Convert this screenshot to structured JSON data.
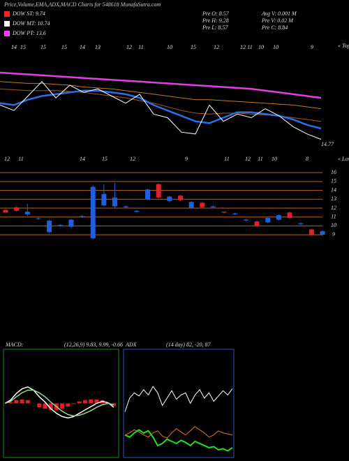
{
  "header": {
    "title": "Price,Volume,EMA,ADX,MACD Charts for 548618 MunafaSutra.com",
    "legend": [
      {
        "label": "DOW ST: 9.74",
        "color": "#ff2020"
      },
      {
        "label": "DOW MT: 10.74",
        "color": "#ffffff"
      },
      {
        "label": "DOW PT: 13.6",
        "color": "#ff40ff"
      }
    ],
    "stats": [
      "Pre  O: 8.57",
      "Avg  V: 0.001 M",
      "Pre  H: 9.28",
      "Pre  V: 0.02 M",
      "Pre  L: 8.57",
      "Pre  C: 8.84"
    ]
  },
  "chart_data": [
    {
      "type": "line",
      "annotation": "14.77",
      "tops_label": "« Tops",
      "top_labels": [
        "14",
        "15",
        "15",
        "15",
        "14",
        "13",
        "12",
        "11",
        "10",
        "15",
        "12",
        "12",
        "11",
        "10",
        "10",
        "9"
      ],
      "bottom_labels": [
        "12",
        "11",
        "14",
        "15",
        "12",
        "9",
        "11",
        "12",
        "11",
        "10",
        "8"
      ],
      "ylim": [
        14,
        20
      ],
      "series": [
        {
          "color": "#e040e0",
          "values": [
            18.3,
            18.25,
            18.2,
            18.15,
            18.1,
            18.05,
            18.0,
            17.95,
            17.9,
            17.85,
            17.8,
            17.75,
            17.7,
            17.65,
            17.6,
            17.55,
            17.5,
            17.45,
            17.4,
            17.3,
            17.2,
            17.1,
            17.0,
            16.9
          ]
        },
        {
          "color": "#c8761c",
          "values": [
            17.8,
            17.75,
            17.7,
            17.7,
            17.65,
            17.6,
            17.5,
            17.45,
            17.4,
            17.3,
            17.2,
            17.1,
            17.0,
            16.9,
            16.8,
            16.8,
            16.75,
            16.7,
            16.65,
            16.6,
            16.55,
            16.5,
            16.4,
            16.3
          ]
        },
        {
          "color": "#a0581a",
          "values": [
            17.4,
            17.35,
            17.3,
            17.3,
            17.3,
            17.25,
            17.2,
            17.1,
            17.0,
            16.9,
            16.75,
            16.6,
            16.4,
            16.2,
            16.05,
            16.0,
            16.05,
            16.05,
            16.0,
            15.95,
            15.9,
            15.8,
            15.7,
            15.6
          ]
        },
        {
          "color": "#2a6fe8",
          "values": [
            16.6,
            16.5,
            16.8,
            17.0,
            17.1,
            17.2,
            17.3,
            17.3,
            17.2,
            17.1,
            16.9,
            16.5,
            16.2,
            15.9,
            15.6,
            15.5,
            15.8,
            16.1,
            16.1,
            16.0,
            15.9,
            15.7,
            15.4,
            15.2
          ]
        },
        {
          "color": "#ffffff",
          "values": [
            16.5,
            16.2,
            17.0,
            17.8,
            16.9,
            17.6,
            17.2,
            17.4,
            17.0,
            16.6,
            17.1,
            16.0,
            15.8,
            15.0,
            14.9,
            16.5,
            15.6,
            16.0,
            15.8,
            16.3,
            15.9,
            15.3,
            14.9,
            14.6
          ]
        }
      ]
    },
    {
      "type": "candlestick",
      "lows_label": "« Lows",
      "ylim": [
        8.3,
        16.8
      ],
      "yticks": [
        9,
        10,
        11,
        12,
        13,
        14,
        15,
        16
      ],
      "up_color": "#2060e0",
      "down_color": "#e02028",
      "grid_color": "#b8661c",
      "open": [
        11.8,
        12.1,
        11.3,
        10.8,
        9.3,
        10.05,
        9.9,
        11.0,
        8.6,
        12.3,
        12.2,
        12.1,
        11.6,
        13.0,
        14.7,
        12.8,
        13.4,
        12.0,
        12.6,
        12.1,
        11.6,
        11.3,
        10.6,
        10.5,
        10.4,
        10.7,
        11.5,
        10.2,
        9.6,
        9.0
      ],
      "high": [
        11.9,
        12.2,
        12.5,
        10.95,
        10.7,
        10.2,
        10.8,
        11.2,
        14.6,
        14.7,
        14.85,
        12.3,
        11.8,
        14.2,
        14.8,
        13.4,
        13.5,
        12.8,
        12.7,
        12.3,
        11.6,
        11.5,
        10.8,
        10.6,
        11.0,
        11.3,
        11.6,
        10.4,
        9.7,
        9.5
      ],
      "low": [
        11.4,
        11.6,
        11.1,
        10.7,
        9.2,
        9.9,
        9.8,
        10.9,
        8.5,
        12.2,
        12.0,
        12.0,
        11.5,
        12.9,
        13.1,
        12.7,
        12.8,
        11.9,
        12.0,
        12.0,
        11.4,
        11.2,
        10.5,
        9.9,
        10.3,
        10.6,
        10.8,
        10.1,
        8.9,
        8.9
      ],
      "close": [
        11.5,
        11.7,
        11.6,
        10.85,
        10.6,
        10.1,
        10.7,
        11.1,
        14.4,
        13.6,
        13.2,
        12.2,
        11.7,
        14.1,
        13.2,
        13.3,
        12.9,
        12.7,
        12.1,
        12.2,
        11.5,
        11.4,
        10.7,
        10.0,
        10.9,
        11.2,
        10.9,
        10.3,
        9.0,
        9.4
      ]
    },
    {
      "type": "macd",
      "title": "MACD:",
      "subtitle": "(12,26,9) 9.83, 9.99, -0.66",
      "ylim": [
        -8,
        8
      ],
      "series": [
        {
          "color": "#ffffff",
          "values": [
            0,
            0.5,
            1.5,
            2.2,
            2.5,
            2.0,
            1.0,
            0.2,
            -0.8,
            -1.5,
            -2.0,
            -2.2,
            -2.0,
            -1.5,
            -1.0,
            -0.5,
            0,
            0.3,
            0.1,
            -0.6
          ]
        },
        {
          "color": "#9ad29a",
          "values": [
            0,
            0.3,
            1.0,
            1.6,
            2.0,
            2.0,
            1.6,
            1.0,
            0.2,
            -0.5,
            -1.2,
            -1.7,
            -1.9,
            -1.8,
            -1.5,
            -1.1,
            -0.6,
            -0.2,
            0,
            -0.2
          ]
        }
      ],
      "histogram": {
        "color": "#e02020",
        "values": [
          0,
          0.2,
          0.5,
          0.6,
          0.5,
          0,
          -0.6,
          -0.8,
          -1.0,
          -1.0,
          -0.8,
          -0.5,
          -0.1,
          0.3,
          0.5,
          0.6,
          0.6,
          0.5,
          0.1,
          -0.4
        ]
      }
    },
    {
      "type": "line",
      "title": "ADX",
      "subtitle": "(14 day) 82, -20, 87",
      "ylim": [
        0,
        100
      ],
      "series": [
        {
          "color": "#ffffff",
          "values": [
            42,
            55,
            60,
            57,
            63,
            58,
            66,
            60,
            48,
            55,
            62,
            54,
            58,
            60,
            50,
            58,
            63,
            55,
            60,
            52,
            57,
            62,
            58,
            64
          ]
        },
        {
          "color": "#e07a1a",
          "values": [
            20,
            22,
            25,
            23,
            20,
            18,
            22,
            24,
            19,
            17,
            22,
            26,
            23,
            20,
            24,
            28,
            25,
            22,
            18,
            20,
            24,
            22,
            21,
            20
          ]
        },
        {
          "color": "#20e020",
          "values": [
            20,
            18,
            22,
            25,
            22,
            24,
            18,
            10,
            12,
            16,
            14,
            12,
            15,
            13,
            10,
            14,
            12,
            10,
            8,
            9,
            6,
            7,
            5,
            8
          ]
        }
      ]
    }
  ]
}
